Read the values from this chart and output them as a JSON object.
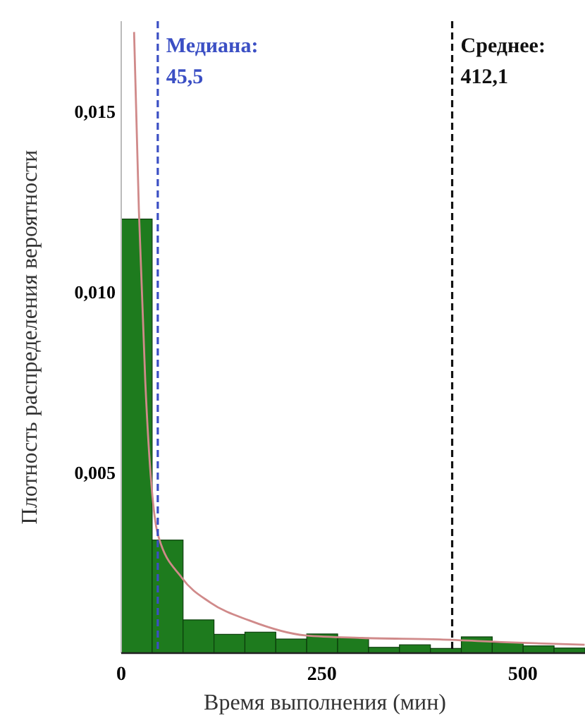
{
  "chart_data": {
    "type": "histogram",
    "xlabel": "Время выполнения (мин)",
    "ylabel": "Плотность распределения вероятности",
    "bins": [
      0,
      38.5,
      77,
      115.5,
      154,
      192.5,
      231,
      269.5,
      308,
      346.5,
      385,
      423.5,
      462,
      500.5,
      539,
      577.5
    ],
    "values": [
      0.01202,
      0.00313,
      0.00092,
      0.00052,
      0.00058,
      0.00039,
      0.00053,
      0.00042,
      0.00016,
      0.00023,
      0.00013,
      0.00045,
      0.00029,
      0.0002,
      0.00014
    ],
    "color": "#1e7b1e",
    "series": [
      {
        "type": "line",
        "color": "#d08a8a",
        "x": [
          16,
          22,
          30,
          45.5,
          75,
          111,
          160,
          229,
          300,
          397,
          480,
          577
        ],
        "values": [
          0.0172,
          0.01225,
          0.0075,
          0.0033,
          0.0021,
          0.0014,
          0.0009,
          0.00049,
          0.00042,
          0.00038,
          0.0003,
          0.00023
        ]
      }
    ],
    "xlim": [
      0,
      577.5
    ],
    "ylim": [
      0,
      0.0175
    ],
    "xticks": [
      {
        "value": 0,
        "label": "0"
      },
      {
        "value": 250,
        "label": "250"
      },
      {
        "value": 500,
        "label": "500"
      }
    ],
    "yticks": [
      {
        "value": 0.005,
        "label": "0,005"
      },
      {
        "value": 0.01,
        "label": "0,010"
      },
      {
        "value": 0.015,
        "label": "0,015"
      }
    ],
    "ref_lines": [
      {
        "axis": "x",
        "value": 45.5,
        "label": "Медиана:\n45,5",
        "color": "#3b4fc4",
        "line_style": "dashed"
      },
      {
        "axis": "x",
        "value": 412.1,
        "label": "Среднее:\n412,1",
        "color": "#111111",
        "line_style": "dashed"
      }
    ],
    "grid": false
  }
}
